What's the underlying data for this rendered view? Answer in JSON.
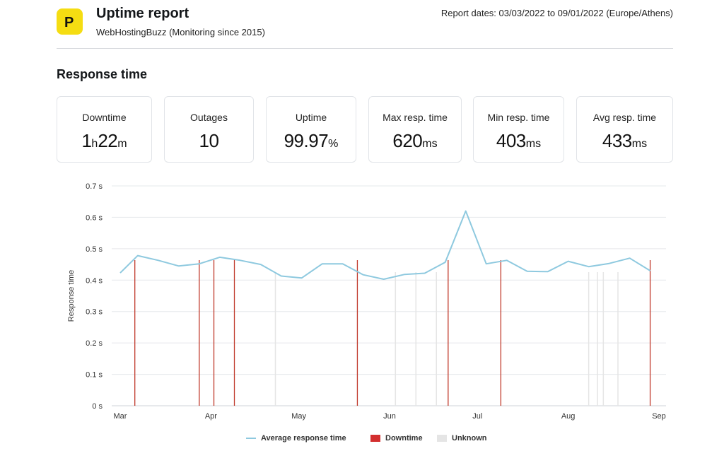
{
  "header": {
    "logo_letter": "P",
    "title": "Uptime report",
    "subtitle": "WebHostingBuzz (Monitoring since 2015)",
    "report_dates": "Report dates: 03/03/2022 to 09/01/2022 (Europe/Athens)"
  },
  "section_title": "Response time",
  "stats": {
    "downtime": {
      "label": "Downtime",
      "hours": "1",
      "h_unit": "h",
      "minutes": "22",
      "m_unit": "m"
    },
    "outages": {
      "label": "Outages",
      "value": "10"
    },
    "uptime": {
      "label": "Uptime",
      "value": "99.97",
      "unit": "%"
    },
    "max": {
      "label": "Max resp. time",
      "value": "620",
      "unit": "ms"
    },
    "min": {
      "label": "Min resp. time",
      "value": "403",
      "unit": "ms"
    },
    "avg": {
      "label": "Avg resp. time",
      "value": "433",
      "unit": "ms"
    }
  },
  "legend": {
    "avg_label": "Average response time",
    "downtime_label": "Downtime",
    "unknown_label": "Unknown"
  },
  "colors": {
    "line": "#8ec9df",
    "downtime": "#c0392b",
    "unknown": "#e5e5e5",
    "logo": "#f5dd12"
  },
  "chart_data": {
    "type": "line",
    "ylabel": "Response time",
    "xlabel": "",
    "ylim": [
      0,
      0.7
    ],
    "y_ticks": [
      "0 s",
      "0.1 s",
      "0.2 s",
      "0.3 s",
      "0.4 s",
      "0.5 s",
      "0.6 s",
      "0.7 s"
    ],
    "x_ticks": [
      "Mar",
      "Apr",
      "May",
      "Jun",
      "Jul",
      "Aug",
      "Sep"
    ],
    "series": [
      {
        "name": "Average response time",
        "points": [
          [
            "2022-03-01",
            0.423
          ],
          [
            "2022-03-07",
            0.478
          ],
          [
            "2022-03-14",
            0.463
          ],
          [
            "2022-03-21",
            0.445
          ],
          [
            "2022-03-28",
            0.452
          ],
          [
            "2022-04-04",
            0.473
          ],
          [
            "2022-04-11",
            0.463
          ],
          [
            "2022-04-18",
            0.45
          ],
          [
            "2022-04-25",
            0.413
          ],
          [
            "2022-05-02",
            0.407
          ],
          [
            "2022-05-09",
            0.452
          ],
          [
            "2022-05-16",
            0.452
          ],
          [
            "2022-05-23",
            0.417
          ],
          [
            "2022-05-30",
            0.403
          ],
          [
            "2022-06-06",
            0.418
          ],
          [
            "2022-06-13",
            0.422
          ],
          [
            "2022-06-20",
            0.457
          ],
          [
            "2022-06-27",
            0.62
          ],
          [
            "2022-07-04",
            0.452
          ],
          [
            "2022-07-11",
            0.463
          ],
          [
            "2022-07-18",
            0.428
          ],
          [
            "2022-07-25",
            0.427
          ],
          [
            "2022-08-01",
            0.46
          ],
          [
            "2022-08-08",
            0.443
          ],
          [
            "2022-08-15",
            0.453
          ],
          [
            "2022-08-22",
            0.47
          ],
          [
            "2022-08-29",
            0.43
          ]
        ]
      }
    ],
    "downtime_dates": [
      "2022-03-06",
      "2022-03-28",
      "2022-04-02",
      "2022-04-09",
      "2022-05-21",
      "2022-06-21",
      "2022-07-09",
      "2022-08-29"
    ],
    "unknown_dates": [
      "2022-04-23",
      "2022-06-03",
      "2022-06-10",
      "2022-06-17",
      "2022-08-08",
      "2022-08-11",
      "2022-08-13",
      "2022-08-18"
    ]
  }
}
